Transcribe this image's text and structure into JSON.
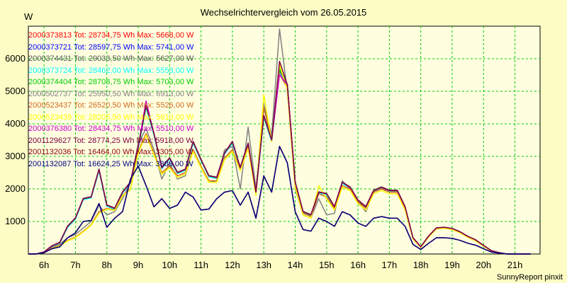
{
  "chart_data": {
    "type": "line",
    "title": "Wechselrichtervergleich vom 26.05.2015",
    "ylabel": "W",
    "footer": "SunnyReport pinxit",
    "grid": true,
    "legend_position": "top-left",
    "ylim": [
      0,
      7000
    ],
    "yticks": [
      1000,
      2000,
      3000,
      4000,
      5000,
      6000
    ],
    "xticks": [
      "6h",
      "7h",
      "8h",
      "9h",
      "10h",
      "11h",
      "12h",
      "13h",
      "14h",
      "15h",
      "16h",
      "17h",
      "18h",
      "19h",
      "20h",
      "21h"
    ],
    "x_hours": [
      5.5,
      5.75,
      6,
      6.25,
      6.5,
      6.75,
      7,
      7.25,
      7.5,
      7.75,
      8,
      8.25,
      8.5,
      8.75,
      9,
      9.25,
      9.5,
      9.75,
      10,
      10.25,
      10.5,
      10.75,
      11,
      11.25,
      11.5,
      11.75,
      12,
      12.25,
      12.5,
      12.75,
      13,
      13.25,
      13.5,
      13.75,
      14,
      14.25,
      14.5,
      14.75,
      15,
      15.25,
      15.5,
      15.75,
      16,
      16.25,
      16.5,
      16.75,
      17,
      17.25,
      17.5,
      17.75,
      18,
      18.25,
      18.5,
      18.75,
      19,
      19.25,
      19.5,
      19.75,
      20,
      20.25,
      20.5,
      20.75,
      21,
      21.25,
      21.5
    ],
    "series": [
      {
        "name": "2000373813 Tot: 28734,75 Wh Max: 5668,00 W",
        "color": "#ff0000",
        "values": [
          0,
          0,
          60,
          250,
          350,
          850,
          1100,
          1700,
          1750,
          2600,
          1500,
          1400,
          1900,
          2200,
          3300,
          4550,
          3700,
          2650,
          2950,
          2500,
          2600,
          3450,
          2900,
          2400,
          2350,
          3100,
          3450,
          2650,
          3400,
          1900,
          4250,
          3500,
          5700,
          5200,
          2200,
          1300,
          1200,
          1900,
          1850,
          1450,
          2200,
          2050,
          1650,
          1450,
          1950,
          2050,
          1950,
          1950,
          1450,
          500,
          220,
          550,
          800,
          820,
          780,
          680,
          540,
          430,
          260,
          100,
          40,
          0,
          0,
          0,
          0
        ]
      },
      {
        "name": "2000373721 Tot: 28597,75 Wh Max: 5741,00 W",
        "color": "#0000ff",
        "values": [
          0,
          0,
          60,
          240,
          340,
          840,
          1090,
          1690,
          1740,
          2580,
          1490,
          1390,
          1890,
          2190,
          3280,
          4530,
          3680,
          2640,
          2940,
          2490,
          2590,
          3430,
          2890,
          2390,
          2340,
          3090,
          3430,
          2640,
          3390,
          1890,
          4230,
          3480,
          5741,
          5180,
          2190,
          1290,
          1190,
          1890,
          1840,
          1440,
          2190,
          2040,
          1640,
          1440,
          1940,
          2040,
          1940,
          1940,
          1440,
          495,
          215,
          545,
          795,
          815,
          775,
          675,
          535,
          425,
          255,
          95,
          38,
          0,
          0,
          0,
          0
        ]
      },
      {
        "name": "2000374431 Tot: 29033,50 Wh Max: 5627,00 W",
        "color": "#555555",
        "values": [
          0,
          0,
          60,
          250,
          360,
          860,
          1110,
          1710,
          1760,
          2610,
          1510,
          1410,
          1910,
          2210,
          3310,
          4560,
          3710,
          2660,
          2960,
          2510,
          2610,
          3460,
          2910,
          2410,
          2360,
          3110,
          3460,
          2660,
          3410,
          1910,
          4260,
          3510,
          5627,
          5210,
          2210,
          1310,
          1210,
          1910,
          1860,
          1460,
          2210,
          2060,
          1660,
          1460,
          1960,
          2060,
          1960,
          1960,
          1460,
          505,
          225,
          555,
          805,
          825,
          785,
          685,
          545,
          435,
          265,
          105,
          42,
          0,
          0,
          0,
          0
        ]
      },
      {
        "name": "2000373724 Tot: 28462,00 Wh Max: 5553,00 W",
        "color": "#00ffff",
        "values": [
          0,
          0,
          55,
          230,
          330,
          820,
          1070,
          1670,
          1720,
          2550,
          1470,
          1370,
          1870,
          2170,
          3250,
          4500,
          3650,
          2620,
          2920,
          2470,
          2570,
          3400,
          2870,
          2370,
          2320,
          3070,
          3400,
          2620,
          3370,
          1870,
          4200,
          3450,
          5553,
          5150,
          2170,
          1270,
          1170,
          1870,
          1820,
          1420,
          2170,
          2020,
          1620,
          1420,
          1920,
          2020,
          1920,
          1920,
          1420,
          490,
          210,
          540,
          790,
          810,
          770,
          670,
          530,
          420,
          250,
          90,
          35,
          0,
          0,
          0,
          0
        ]
      },
      {
        "name": "2000374404 Tot: 28708,75 Wh Max: 5703,00 W",
        "color": "#00cc00",
        "values": [
          0,
          0,
          58,
          245,
          345,
          845,
          1095,
          1695,
          1745,
          2590,
          1495,
          1395,
          1895,
          2195,
          3290,
          4540,
          3690,
          2645,
          2945,
          2495,
          2595,
          3440,
          2895,
          2395,
          2345,
          3095,
          3440,
          2645,
          3395,
          1895,
          4240,
          3490,
          5703,
          5190,
          2195,
          1295,
          1195,
          1895,
          1845,
          1445,
          2195,
          2045,
          1645,
          1445,
          1945,
          2045,
          1945,
          1945,
          1445,
          498,
          218,
          548,
          798,
          818,
          778,
          678,
          538,
          428,
          258,
          98,
          39,
          0,
          0,
          0,
          0
        ]
      },
      {
        "name": "2000502737 Tot: 25950,50 Wh Max: 6913,00 W",
        "color": "#808080",
        "values": [
          0,
          0,
          40,
          200,
          300,
          500,
          600,
          800,
          1000,
          1500,
          1200,
          1300,
          1700,
          2200,
          3400,
          3850,
          3200,
          2300,
          2800,
          2300,
          2400,
          3200,
          2700,
          2200,
          2250,
          3200,
          3300,
          2000,
          3900,
          2000,
          4600,
          3650,
          6913,
          5000,
          2000,
          1200,
          1100,
          1700,
          1200,
          1250,
          2250,
          2000,
          1600,
          1300,
          1900,
          2000,
          1950,
          1900,
          1400,
          480,
          210,
          540,
          790,
          800,
          760,
          650,
          520,
          410,
          250,
          90,
          35,
          0,
          0,
          0,
          0
        ]
      },
      {
        "name": "2000523437 Tot: 26520,50 Wh Max: 5526,00 W",
        "color": "#d2691e",
        "values": [
          0,
          0,
          40,
          180,
          260,
          420,
          520,
          700,
          900,
          1300,
          1400,
          1350,
          1800,
          2000,
          3150,
          3700,
          3100,
          2500,
          2700,
          2400,
          2500,
          3200,
          2700,
          2250,
          2250,
          2950,
          3200,
          2600,
          3300,
          1850,
          4500,
          3500,
          5526,
          5100,
          2100,
          1250,
          1150,
          1850,
          1750,
          1400,
          2100,
          2000,
          1600,
          1400,
          1900,
          2000,
          1900,
          1900,
          1400,
          480,
          210,
          540,
          790,
          810,
          770,
          670,
          530,
          420,
          255,
          95,
          38,
          0,
          0,
          0,
          0
        ]
      },
      {
        "name": "2000523439 Tot: 28205,50 Wh Max: 5810,00 W",
        "color": "#ffff00",
        "values": [
          0,
          0,
          40,
          170,
          250,
          400,
          500,
          680,
          880,
          1250,
          1380,
          1340,
          1780,
          1980,
          3100,
          3650,
          3050,
          2450,
          2650,
          2350,
          2450,
          3150,
          2650,
          2200,
          2200,
          2900,
          3150,
          2550,
          3250,
          1800,
          4900,
          3450,
          5810,
          5050,
          2050,
          1200,
          1100,
          2100,
          1700,
          1350,
          2050,
          1950,
          1550,
          1350,
          1850,
          1950,
          1850,
          1850,
          1350,
          460,
          200,
          520,
          770,
          790,
          750,
          650,
          510,
          400,
          240,
          85,
          32,
          0,
          0,
          0,
          0
        ]
      },
      {
        "name": "2000376380 Tot: 28434,75 Wh Max: 5510,00 W",
        "color": "#cc00cc",
        "values": [
          0,
          0,
          60,
          250,
          350,
          850,
          1100,
          1700,
          1750,
          2600,
          1500,
          1400,
          1900,
          2200,
          3300,
          4700,
          3700,
          2650,
          2950,
          2500,
          2600,
          3450,
          2900,
          2400,
          2350,
          3100,
          3450,
          2650,
          3400,
          1900,
          4250,
          3500,
          5510,
          5200,
          2200,
          1300,
          1200,
          1900,
          1850,
          1450,
          2200,
          2050,
          1650,
          1450,
          1950,
          2050,
          1950,
          1950,
          1450,
          500,
          220,
          550,
          800,
          820,
          780,
          680,
          540,
          430,
          260,
          100,
          40,
          0,
          0,
          0,
          0
        ]
      },
      {
        "name": "2001129627 Tot: 28774,25 Wh Max: 5918,00 W",
        "color": "#800040",
        "values": [
          0,
          0,
          62,
          255,
          355,
          855,
          1105,
          1705,
          1755,
          2605,
          1505,
          1405,
          1905,
          2205,
          3305,
          4560,
          3705,
          2655,
          2955,
          2505,
          2605,
          3455,
          2905,
          2405,
          2355,
          3105,
          3455,
          2655,
          3405,
          1905,
          4255,
          3505,
          5918,
          5205,
          2205,
          1305,
          1205,
          1905,
          1855,
          1455,
          2205,
          2055,
          1655,
          1455,
          1955,
          2055,
          1955,
          1955,
          1455,
          502,
          222,
          552,
          802,
          822,
          782,
          682,
          542,
          432,
          262,
          102,
          41,
          0,
          0,
          0,
          0
        ]
      },
      {
        "name": "2001132036 Tot: 16464,00 Wh Max: 3305,00 W",
        "color": "#8b0000",
        "values": [
          0,
          0,
          40,
          160,
          220,
          500,
          650,
          1000,
          1030,
          1550,
          820,
          1100,
          1300,
          2300,
          2700,
          2100,
          1450,
          1700,
          1400,
          1500,
          1900,
          1750,
          1350,
          1380,
          1700,
          1900,
          1950,
          1500,
          1900,
          1100,
          2400,
          1900,
          3305,
          2800,
          1300,
          750,
          700,
          1100,
          1000,
          850,
          1300,
          1200,
          950,
          850,
          1100,
          1150,
          1100,
          1100,
          850,
          300,
          140,
          330,
          500,
          500,
          480,
          420,
          330,
          270,
          160,
          60,
          25,
          0,
          0,
          0,
          0
        ]
      },
      {
        "name": "2001132087 Tot: 16624,25 Wh Max: 3308,00 W",
        "color": "#000080",
        "values": [
          0,
          0,
          40,
          160,
          220,
          500,
          650,
          1000,
          1030,
          1550,
          820,
          1100,
          1300,
          2300,
          2700,
          2100,
          1450,
          1700,
          1400,
          1500,
          1900,
          1750,
          1350,
          1380,
          1700,
          1900,
          1950,
          1500,
          1900,
          1100,
          2400,
          1900,
          3308,
          2800,
          1300,
          750,
          700,
          1100,
          1000,
          850,
          1300,
          1200,
          950,
          850,
          1100,
          1150,
          1100,
          1100,
          850,
          300,
          140,
          330,
          500,
          500,
          480,
          420,
          330,
          270,
          160,
          60,
          25,
          0,
          0,
          0,
          0
        ]
      }
    ]
  }
}
